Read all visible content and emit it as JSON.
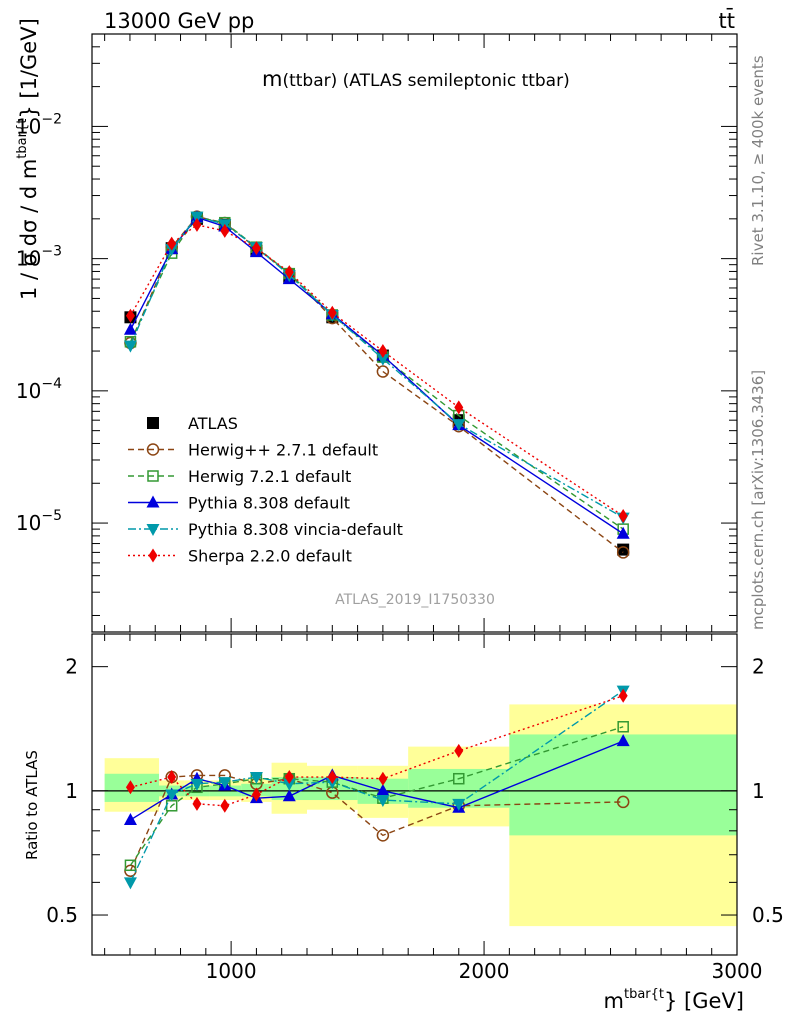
{
  "header": {
    "beam_label": "13000 GeV pp",
    "process_label": "tt̄",
    "title_main": "m",
    "title_tail": "(ttbar) (ATLAS semileptonic ttbar)",
    "watermark": "ATLAS_2019_I1750330",
    "rivet_note": "Rivet 3.1.10, ≥ 400k events",
    "mcplots_note": "mcplots.cern.ch [arXiv:1306.3436]"
  },
  "axes": {
    "y_label_main": "1 / σ dσ / d m",
    "y_label_sup": "tbar{t",
    "y_label_close": "} [1/GeV]",
    "ratio_y_label": "Ratio to ATLAS",
    "x_label_main": "m",
    "x_label_sup": "tbar{t",
    "x_label_close": "} [GeV]",
    "main_y_ticks": [
      {
        "base": "10",
        "exp": "−5",
        "value": 1e-05
      },
      {
        "base": "10",
        "exp": "−4",
        "value": 0.0001
      },
      {
        "base": "10",
        "exp": "−3",
        "value": 0.001
      },
      {
        "base": "10",
        "exp": "−2",
        "value": 0.01
      }
    ],
    "ratio_y_ticks": [
      "0.5",
      "1",
      "2"
    ],
    "x_ticks": [
      "1000",
      "2000",
      "3000"
    ]
  },
  "chart_data": [
    {
      "type": "line",
      "panel": "main",
      "x_range": [
        450,
        3000
      ],
      "y_range": [
        1.5e-06,
        0.05
      ],
      "y_scale": "log",
      "legend_position": "lower-left",
      "x": [
        602,
        765,
        865,
        975,
        1100,
        1230,
        1400,
        1600,
        1900,
        2550
      ],
      "bin_edges": [
        500,
        715,
        815,
        915,
        1040,
        1160,
        1300,
        1500,
        1700,
        2100,
        3000
      ],
      "series": [
        {
          "name": "ATLAS",
          "color": "#000000",
          "marker": "square-filled",
          "line": "none",
          "values": [
            0.00036,
            0.0012,
            0.002,
            0.0018,
            0.00115,
            0.00072,
            0.00036,
            0.000185,
            6e-05,
            6.3e-06
          ]
        },
        {
          "name": "Herwig++ 2.7.1 default",
          "color": "#8b4513",
          "marker": "circle-open",
          "line": "dashed",
          "values": [
            0.00023,
            0.00122,
            0.00208,
            0.00186,
            0.0012,
            0.00077,
            0.000355,
            0.00014,
            5.4e-05,
            6e-06
          ]
        },
        {
          "name": "Herwig 7.2.1 default",
          "color": "#339933",
          "marker": "square-open",
          "line": "dashed",
          "values": [
            0.000235,
            0.0011,
            0.00205,
            0.00187,
            0.00122,
            0.00077,
            0.000375,
            0.00018,
            6.5e-05,
            9e-06
          ]
        },
        {
          "name": "Pythia 8.308 default",
          "color": "#0000dd",
          "marker": "triangle-up-filled",
          "line": "solid",
          "values": [
            0.00029,
            0.00118,
            0.00205,
            0.00175,
            0.00112,
            0.0007,
            0.00038,
            0.000185,
            5.5e-05,
            8.3e-06
          ]
        },
        {
          "name": "Pythia 8.308 vincia-default",
          "color": "#0099aa",
          "marker": "triangle-down-filled",
          "line": "dashdot",
          "values": [
            0.00022,
            0.00118,
            0.00208,
            0.00182,
            0.00122,
            0.00075,
            0.000375,
            0.000175,
            5.6e-05,
            1.1e-05
          ]
        },
        {
          "name": "Sherpa 2.2.0 default",
          "color": "#ee0000",
          "marker": "diamond-filled",
          "line": "dotted",
          "values": [
            0.00037,
            0.0013,
            0.0018,
            0.00162,
            0.0012,
            0.00079,
            0.00039,
            0.0002,
            7.5e-05,
            1.13e-05
          ]
        }
      ]
    },
    {
      "type": "line",
      "panel": "ratio",
      "x_range": [
        450,
        3000
      ],
      "y_range": [
        0.4,
        2.4
      ],
      "y_scale": "log",
      "reference_line": 1,
      "x": [
        602,
        765,
        865,
        975,
        1100,
        1230,
        1400,
        1600,
        1900,
        2550
      ],
      "bands": {
        "outer": [
          {
            "x": [
              500,
              715
            ],
            "y": [
              0.89,
              1.2
            ]
          },
          {
            "x": [
              715,
              815
            ],
            "y": [
              0.95,
              1.06
            ]
          },
          {
            "x": [
              815,
              915
            ],
            "y": [
              0.95,
              1.06
            ]
          },
          {
            "x": [
              915,
              1040
            ],
            "y": [
              0.95,
              1.06
            ]
          },
          {
            "x": [
              1040,
              1160
            ],
            "y": [
              0.94,
              1.07
            ]
          },
          {
            "x": [
              1160,
              1300
            ],
            "y": [
              0.88,
              1.17
            ]
          },
          {
            "x": [
              1300,
              1500
            ],
            "y": [
              0.9,
              1.15
            ]
          },
          {
            "x": [
              1500,
              1700
            ],
            "y": [
              0.86,
              1.15
            ]
          },
          {
            "x": [
              1700,
              2100
            ],
            "y": [
              0.82,
              1.28
            ]
          },
          {
            "x": [
              2100,
              3000
            ],
            "y": [
              0.47,
              1.62
            ]
          }
        ],
        "inner": [
          {
            "x": [
              500,
              715
            ],
            "y": [
              0.94,
              1.1
            ]
          },
          {
            "x": [
              715,
              815
            ],
            "y": [
              0.97,
              1.03
            ]
          },
          {
            "x": [
              815,
              915
            ],
            "y": [
              0.97,
              1.03
            ]
          },
          {
            "x": [
              915,
              1040
            ],
            "y": [
              0.97,
              1.03
            ]
          },
          {
            "x": [
              1040,
              1160
            ],
            "y": [
              0.97,
              1.04
            ]
          },
          {
            "x": [
              1160,
              1300
            ],
            "y": [
              0.95,
              1.08
            ]
          },
          {
            "x": [
              1300,
              1500
            ],
            "y": [
              0.95,
              1.08
            ]
          },
          {
            "x": [
              1500,
              1700
            ],
            "y": [
              0.93,
              1.07
            ]
          },
          {
            "x": [
              1700,
              2100
            ],
            "y": [
              0.91,
              1.13
            ]
          },
          {
            "x": [
              2100,
              3000
            ],
            "y": [
              0.78,
              1.37
            ]
          }
        ],
        "outer_color": "#ffff99",
        "inner_color": "#99ff99"
      },
      "series": [
        {
          "name": "Herwig++ 2.7.1 default",
          "color": "#8b4513",
          "marker": "circle-open",
          "line": "dashed",
          "values": [
            0.64,
            1.08,
            1.09,
            1.09,
            1.04,
            1.07,
            0.99,
            0.78,
            0.92,
            0.94
          ]
        },
        {
          "name": "Herwig 7.2.1 default",
          "color": "#339933",
          "marker": "square-open",
          "line": "dashed",
          "values": [
            0.66,
            0.92,
            1.02,
            1.04,
            1.07,
            1.07,
            1.05,
            0.96,
            1.07,
            1.43
          ]
        },
        {
          "name": "Pythia 8.308 default",
          "color": "#0000dd",
          "marker": "triangle-up-filled",
          "line": "solid",
          "values": [
            0.85,
            0.98,
            1.07,
            1.03,
            0.96,
            0.97,
            1.09,
            1.0,
            0.91,
            1.32
          ]
        },
        {
          "name": "Pythia 8.308 vincia-default",
          "color": "#0099aa",
          "marker": "triangle-down-filled",
          "line": "dashdot",
          "values": [
            0.6,
            0.98,
            1.04,
            1.05,
            1.08,
            1.04,
            1.05,
            0.95,
            0.93,
            1.75
          ]
        },
        {
          "name": "Sherpa 2.2.0 default",
          "color": "#ee0000",
          "marker": "diamond-filled",
          "line": "dotted",
          "values": [
            1.02,
            1.08,
            0.93,
            0.92,
            0.98,
            1.08,
            1.08,
            1.07,
            1.25,
            1.7
          ]
        }
      ]
    }
  ]
}
